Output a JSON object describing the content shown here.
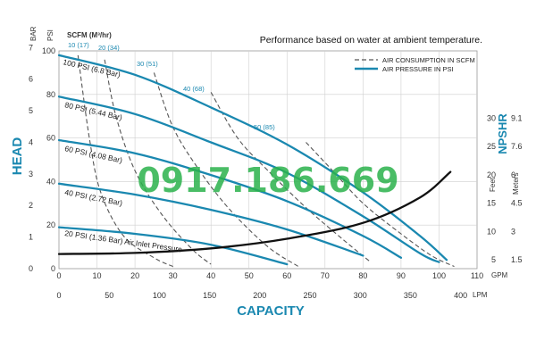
{
  "chart_data": {
    "type": "line",
    "note": "Performance based on water at ambient temperature.",
    "watermark": "0917.186.669",
    "y_title": "HEAD",
    "x_title": "CAPACITY",
    "npshr_title": "NPSHR",
    "scfm_title": "SCFM (M³/hr)",
    "axis_units": {
      "bar": "BAR",
      "psi": "PSI",
      "gpm": "GPM",
      "lpm": "LPM",
      "feet": "Feet",
      "meters": "Meters"
    },
    "x_gpm": {
      "min": 0,
      "max": 110,
      "ticks": [
        0,
        10,
        20,
        30,
        40,
        50,
        60,
        70,
        80,
        90,
        100,
        110
      ]
    },
    "x_lpm_ticks": [
      0,
      50,
      100,
      150,
      200,
      250,
      300,
      350,
      400
    ],
    "y_psi": {
      "min": 0,
      "max": 100,
      "ticks": [
        0,
        20,
        40,
        60,
        80,
        100
      ]
    },
    "y_bar_ticks": [
      0,
      1,
      2,
      3,
      4,
      5,
      6,
      7
    ],
    "npshr_ticks": [
      {
        "feet": "5",
        "meters": "1.5"
      },
      {
        "feet": "10",
        "meters": "3"
      },
      {
        "feet": "15",
        "meters": "4.5"
      },
      {
        "feet": "20",
        "meters": "6"
      },
      {
        "feet": "25",
        "meters": "7.6"
      },
      {
        "feet": "30",
        "meters": "9.1"
      }
    ],
    "legend": [
      {
        "label": "AIR CONSUMPTION IN SCFM",
        "style": "dashed",
        "color": "#555555"
      },
      {
        "label": "AIR PRESSURE IN PSI",
        "style": "solid",
        "color": "#1a88b0"
      }
    ],
    "pressure_series": [
      {
        "label": "100 PSI (6.8 Bar)",
        "points": [
          [
            0,
            98
          ],
          [
            20,
            89
          ],
          [
            40,
            74
          ],
          [
            60,
            57
          ],
          [
            80,
            35
          ],
          [
            95,
            15
          ],
          [
            102,
            4
          ]
        ]
      },
      {
        "label": "80 PSI (5.44 Bar)",
        "points": [
          [
            0,
            79
          ],
          [
            20,
            71
          ],
          [
            40,
            58
          ],
          [
            60,
            44
          ],
          [
            80,
            24
          ],
          [
            95,
            7
          ],
          [
            100,
            3
          ]
        ]
      },
      {
        "label": "60 PSI (4.08 Bar)",
        "points": [
          [
            0,
            59
          ],
          [
            20,
            53
          ],
          [
            40,
            43
          ],
          [
            60,
            31
          ],
          [
            80,
            15
          ],
          [
            90,
            5
          ]
        ]
      },
      {
        "label": "40 PSI (2.72 Bar)",
        "points": [
          [
            0,
            39
          ],
          [
            20,
            34
          ],
          [
            40,
            27
          ],
          [
            60,
            18
          ],
          [
            80,
            6
          ]
        ]
      },
      {
        "label": "20 PSI (1.36 Bar) Air Inlet Pressure",
        "points": [
          [
            0,
            19
          ],
          [
            20,
            16
          ],
          [
            40,
            11
          ],
          [
            60,
            2
          ]
        ]
      }
    ],
    "scfm_series": [
      {
        "label": "10 (17)",
        "points": [
          [
            5,
            98
          ],
          [
            8,
            60
          ],
          [
            11,
            35
          ],
          [
            17,
            15
          ],
          [
            25,
            5
          ],
          [
            30,
            1
          ]
        ]
      },
      {
        "label": "20 (34)",
        "points": [
          [
            12,
            96
          ],
          [
            15,
            70
          ],
          [
            20,
            45
          ],
          [
            27,
            25
          ],
          [
            35,
            9
          ],
          [
            40,
            2
          ]
        ]
      },
      {
        "label": "30 (51)",
        "points": [
          [
            25,
            90
          ],
          [
            30,
            65
          ],
          [
            37,
            45
          ],
          [
            45,
            27
          ],
          [
            55,
            10
          ],
          [
            63,
            1
          ]
        ]
      },
      {
        "label": "40 (68)",
        "points": [
          [
            40,
            81
          ],
          [
            47,
            60
          ],
          [
            55,
            45
          ],
          [
            65,
            28
          ],
          [
            75,
            13
          ],
          [
            82,
            3
          ]
        ]
      },
      {
        "label": "50 (85)",
        "points": [
          [
            65,
            58
          ],
          [
            72,
            45
          ],
          [
            80,
            30
          ],
          [
            90,
            16
          ],
          [
            98,
            6
          ],
          [
            104,
            1
          ]
        ]
      }
    ],
    "npshr_curve": {
      "points": [
        [
          0,
          6
        ],
        [
          20,
          6.2
        ],
        [
          40,
          7
        ],
        [
          60,
          8.7
        ],
        [
          80,
          11.5
        ],
        [
          95,
          16
        ],
        [
          103,
          20.5
        ]
      ]
    }
  }
}
